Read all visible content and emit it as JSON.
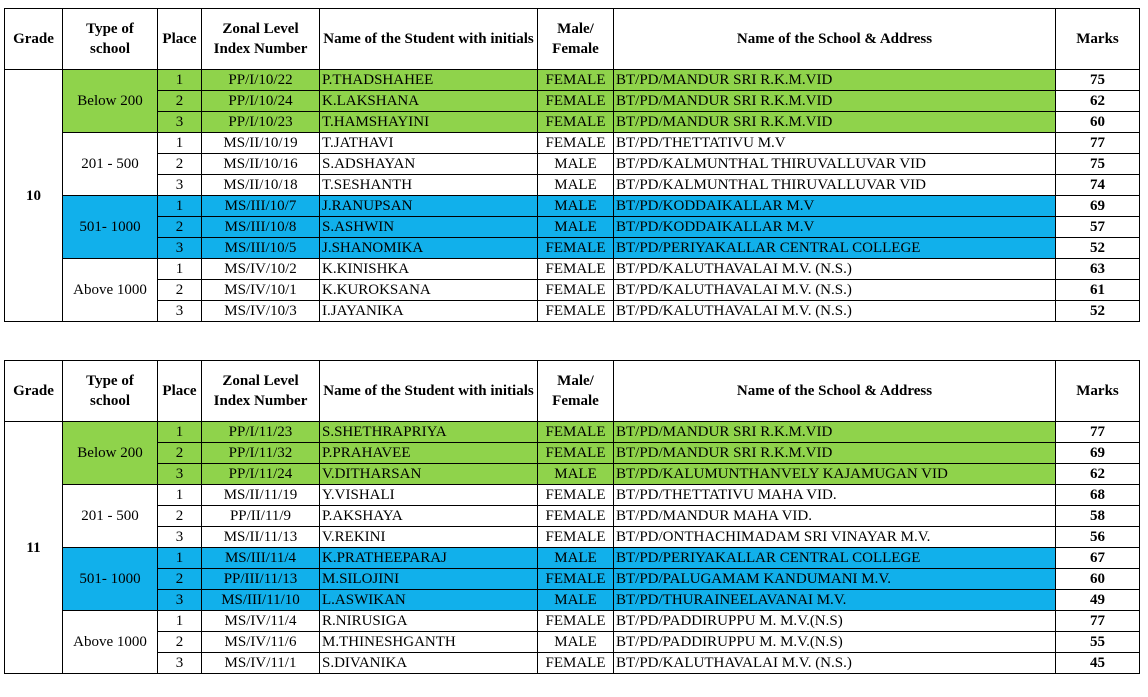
{
  "headers": {
    "grade": "Grade",
    "type": "Type of school",
    "place": "Place",
    "index": "Zonal Level Index Number",
    "name": "Name of the Student with initials",
    "gender": "Male/ Female",
    "school": "Name of the School & Address",
    "marks": "Marks"
  },
  "colors": {
    "green": "#8fd34b",
    "blue": "#11b0eb"
  },
  "tables": [
    {
      "grade": "10",
      "groups": [
        {
          "type": "Below 200",
          "color": "green",
          "rows": [
            {
              "place": "1",
              "index": "PP/I/10/22",
              "name": "P.THADSHAHEE",
              "gender": "FEMALE",
              "school": "BT/PD/MANDUR SRI R.K.M.VID",
              "marks": "75"
            },
            {
              "place": "2",
              "index": "PP/I/10/24",
              "name": "K.LAKSHANA",
              "gender": "FEMALE",
              "school": "BT/PD/MANDUR SRI R.K.M.VID",
              "marks": "62"
            },
            {
              "place": "3",
              "index": "PP/I/10/23",
              "name": "T.HAMSHAYINI",
              "gender": "FEMALE",
              "school": "BT/PD/MANDUR SRI R.K.M.VID",
              "marks": "60"
            }
          ]
        },
        {
          "type": "201 - 500",
          "color": "",
          "rows": [
            {
              "place": "1",
              "index": "MS/II/10/19",
              "name": "T.JATHAVI",
              "gender": "FEMALE",
              "school": "BT/PD/THETTATIVU M.V",
              "marks": "77"
            },
            {
              "place": "2",
              "index": "MS/II/10/16",
              "name": "S.ADSHAYAN",
              "gender": "MALE",
              "school": "BT/PD/KALMUNTHAL THIRUVALLUVAR VID",
              "marks": "75"
            },
            {
              "place": "3",
              "index": "MS/II/10/18",
              "name": "T.SESHANTH",
              "gender": "MALE",
              "school": "BT/PD/KALMUNTHAL THIRUVALLUVAR VID",
              "marks": "74"
            }
          ]
        },
        {
          "type": "501- 1000",
          "color": "blue",
          "rows": [
            {
              "place": "1",
              "index": "MS/III/10/7",
              "name": "J.RANUPSAN",
              "gender": "MALE",
              "school": "BT/PD/KODDAIKALLAR M.V",
              "marks": "69"
            },
            {
              "place": "2",
              "index": "MS/III/10/8",
              "name": "S.ASHWIN",
              "gender": "MALE",
              "school": "BT/PD/KODDAIKALLAR M.V",
              "marks": "57"
            },
            {
              "place": "3",
              "index": "MS/III/10/5",
              "name": "J.SHANOMIKA",
              "gender": "FEMALE",
              "school": "BT/PD/PERIYAKALLAR CENTRAL COLLEGE",
              "marks": "52"
            }
          ]
        },
        {
          "type": "Above 1000",
          "color": "",
          "rows": [
            {
              "place": "1",
              "index": "MS/IV/10/2",
              "name": "K.KINISHKA",
              "gender": "FEMALE",
              "school": "BT/PD/KALUTHAVALAI M.V. (N.S.)",
              "marks": "63"
            },
            {
              "place": "2",
              "index": "MS/IV/10/1",
              "name": "K.KUROKSANA",
              "gender": "FEMALE",
              "school": "BT/PD/KALUTHAVALAI M.V. (N.S.)",
              "marks": "61"
            },
            {
              "place": "3",
              "index": "MS/IV/10/3",
              "name": "I.JAYANIKA",
              "gender": "FEMALE",
              "school": "BT/PD/KALUTHAVALAI M.V. (N.S.)",
              "marks": "52"
            }
          ]
        }
      ]
    },
    {
      "grade": "11",
      "groups": [
        {
          "type": "Below 200",
          "color": "green",
          "rows": [
            {
              "place": "1",
              "index": "PP/I/11/23",
              "name": "S.SHETHRAPRIYA",
              "gender": "FEMALE",
              "school": "BT/PD/MANDUR SRI R.K.M.VID",
              "marks": "77"
            },
            {
              "place": "2",
              "index": "PP/I/11/32",
              "name": "P.PRAHAVEE",
              "gender": "FEMALE",
              "school": "BT/PD/MANDUR SRI R.K.M.VID",
              "marks": "69"
            },
            {
              "place": "3",
              "index": "PP/I/11/24",
              "name": "V.DITHARSAN",
              "gender": "MALE",
              "school": "BT/PD/KALUMUNTHANVELY KAJAMUGAN VID",
              "marks": "62"
            }
          ]
        },
        {
          "type": "201 - 500",
          "color": "",
          "rows": [
            {
              "place": "1",
              "index": "MS/II/11/19",
              "name": "Y.VISHALI",
              "gender": "FEMALE",
              "school": "BT/PD/THETTATIVU MAHA VID.",
              "marks": "68"
            },
            {
              "place": "2",
              "index": "PP/II/11/9",
              "name": "P.AKSHAYA",
              "gender": "FEMALE",
              "school": "BT/PD/MANDUR MAHA VID.",
              "marks": "58"
            },
            {
              "place": "3",
              "index": "MS/II/11/13",
              "name": "V.REKINI",
              "gender": "FEMALE",
              "school": "BT/PD/ONTHACHIMADAM SRI VINAYAR M.V.",
              "marks": "56"
            }
          ]
        },
        {
          "type": "501- 1000",
          "color": "blue",
          "rows": [
            {
              "place": "1",
              "index": "MS/III/11/4",
              "name": "K.PRATHEEPARAJ",
              "gender": "MALE",
              "school": "BT/PD/PERIYAKALLAR CENTRAL COLLEGE",
              "marks": "67"
            },
            {
              "place": "2",
              "index": "PP/III/11/13",
              "name": "M.SILOJINI",
              "gender": "FEMALE",
              "school": "BT/PD/PALUGAMAM KANDUMANI M.V.",
              "marks": "60"
            },
            {
              "place": "3",
              "index": "MS/III/11/10",
              "name": "L.ASWIKAN",
              "gender": "MALE",
              "school": "BT/PD/THURAINEELAVANAI M.V.",
              "marks": "49"
            }
          ]
        },
        {
          "type": "Above 1000",
          "color": "",
          "rows": [
            {
              "place": "1",
              "index": "MS/IV/11/4",
              "name": "R.NIRUSIGA",
              "gender": "FEMALE",
              "school": "BT/PD/PADDIRUPPU M. M.V.(N.S)",
              "marks": "77"
            },
            {
              "place": "2",
              "index": "MS/IV/11/6",
              "name": "M.THINESHGANTH",
              "gender": "MALE",
              "school": "BT/PD/PADDIRUPPU M. M.V.(N.S)",
              "marks": "55"
            },
            {
              "place": "3",
              "index": "MS/IV/11/1",
              "name": "S.DIVANIKA",
              "gender": "FEMALE",
              "school": "BT/PD/KALUTHAVALAI M.V. (N.S.)",
              "marks": "45"
            }
          ]
        }
      ]
    }
  ]
}
